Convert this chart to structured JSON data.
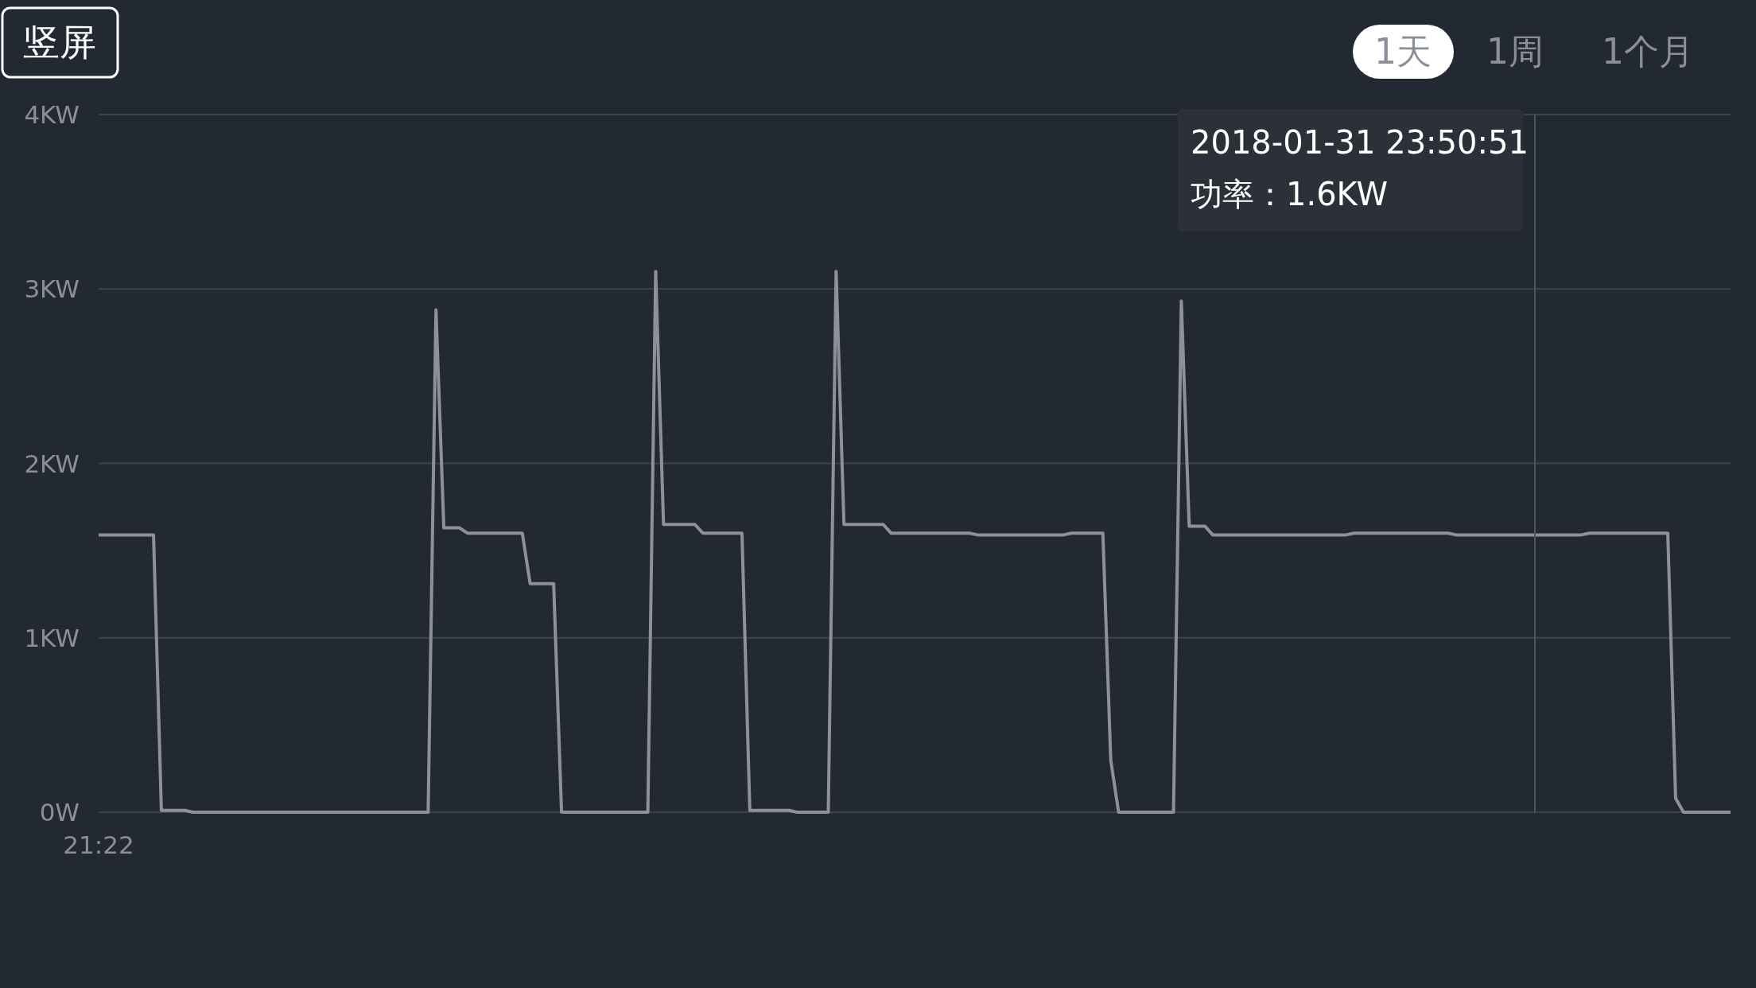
{
  "chart_data": {
    "type": "line",
    "ylim": [
      0,
      4
    ],
    "yticks": [
      {
        "value": 0,
        "label": "0W"
      },
      {
        "value": 1,
        "label": "1KW"
      },
      {
        "value": 2,
        "label": "2KW"
      },
      {
        "value": 3,
        "label": "3KW"
      },
      {
        "value": 4,
        "label": "4KW"
      }
    ],
    "grid": "y",
    "marker": "none",
    "line_style": "solid",
    "annotations": [
      "竖屏",
      "1天",
      "1周",
      "1个月",
      "2018-01-31 23:50:51",
      "功率：1.6KW"
    ],
    "categories": [
      "21:22",
      null,
      null,
      null,
      null,
      null,
      null,
      null,
      null,
      null,
      null,
      null,
      null,
      null,
      null,
      null,
      null,
      null,
      null,
      null,
      null,
      null,
      null,
      null,
      null,
      null,
      null,
      null,
      null,
      null,
      null,
      null,
      null,
      null,
      null,
      null,
      null,
      null,
      null,
      null,
      null,
      null,
      null,
      null,
      null,
      null,
      null,
      null,
      null,
      null,
      null,
      null,
      null,
      null,
      null,
      null,
      null,
      null,
      null,
      null,
      null,
      null,
      null,
      null,
      null,
      null,
      null,
      null,
      null,
      null,
      null,
      null,
      null,
      null,
      null,
      null,
      null,
      null,
      null,
      null,
      null,
      null,
      null,
      null,
      null,
      null,
      null,
      null,
      null,
      null,
      null,
      null,
      null,
      null,
      null,
      null,
      null,
      null,
      null,
      null,
      null,
      null,
      null,
      null,
      null,
      null,
      null,
      null,
      null,
      null,
      null,
      null,
      null,
      null,
      null,
      null,
      null,
      null,
      null,
      null,
      null,
      null,
      null,
      null,
      null,
      null,
      null,
      null,
      null,
      null,
      null,
      null,
      null,
      null,
      null,
      null,
      null,
      null,
      null,
      null,
      null,
      null,
      null,
      null,
      null,
      null,
      null,
      null,
      null,
      null,
      null,
      null,
      null,
      null,
      null,
      null,
      null,
      null,
      null,
      null,
      null,
      null,
      null,
      null,
      null,
      null,
      null,
      null,
      null,
      null,
      null,
      null,
      null,
      null,
      null,
      null,
      null,
      null,
      null,
      null,
      null,
      null,
      null,
      null,
      null,
      null,
      null,
      null,
      null,
      null,
      null,
      null,
      null,
      null,
      null,
      null,
      null,
      null,
      null,
      null,
      null,
      null,
      null,
      null,
      null,
      null,
      null,
      null,
      null
    ],
    "series": [
      {
        "color": "#8e9196",
        "values": [
          1.59,
          1.59,
          1.59,
          1.59,
          1.59,
          1.59,
          1.59,
          1.59,
          0.01,
          0.01,
          0.01,
          0.01,
          0,
          0,
          0,
          0,
          0,
          0,
          0,
          0,
          0,
          0,
          0,
          0,
          0,
          0,
          0,
          0,
          0,
          0,
          0,
          0,
          0,
          0,
          0,
          0,
          0,
          0,
          0,
          0,
          0,
          0,
          0,
          2.88,
          1.63,
          1.63,
          1.63,
          1.6,
          1.6,
          1.6,
          1.6,
          1.6,
          1.6,
          1.6,
          1.6,
          1.31,
          1.31,
          1.31,
          1.31,
          0,
          0,
          0,
          0,
          0,
          0,
          0,
          0,
          0,
          0,
          0,
          0,
          3.1,
          1.65,
          1.65,
          1.65,
          1.65,
          1.65,
          1.6,
          1.6,
          1.6,
          1.6,
          1.6,
          1.6,
          0.01,
          0.01,
          0.01,
          0.01,
          0.01,
          0.01,
          0,
          0,
          0,
          0,
          0,
          3.1,
          1.65,
          1.65,
          1.65,
          1.65,
          1.65,
          1.65,
          1.6,
          1.6,
          1.6,
          1.6,
          1.6,
          1.6,
          1.6,
          1.6,
          1.6,
          1.6,
          1.6,
          1.59,
          1.59,
          1.59,
          1.59,
          1.59,
          1.59,
          1.59,
          1.59,
          1.59,
          1.59,
          1.59,
          1.59,
          1.6,
          1.6,
          1.6,
          1.6,
          1.6,
          0.3,
          0,
          0,
          0,
          0,
          0,
          0,
          0,
          0,
          2.93,
          1.64,
          1.64,
          1.64,
          1.59,
          1.59,
          1.59,
          1.59,
          1.59,
          1.59,
          1.59,
          1.59,
          1.59,
          1.59,
          1.59,
          1.59,
          1.59,
          1.59,
          1.59,
          1.59,
          1.59,
          1.59,
          1.6,
          1.6,
          1.6,
          1.6,
          1.6,
          1.6,
          1.6,
          1.6,
          1.6,
          1.6,
          1.6,
          1.6,
          1.6,
          1.59,
          1.59,
          1.59,
          1.59,
          1.59,
          1.59,
          1.59,
          1.59,
          1.59,
          1.59,
          1.59,
          1.59,
          1.59,
          1.59,
          1.59,
          1.59,
          1.59,
          1.6,
          1.6,
          1.6,
          1.6,
          1.6,
          1.6,
          1.6,
          1.6,
          1.6,
          1.6,
          1.6,
          0.08,
          0,
          0,
          0,
          0,
          0,
          0,
          0
        ]
      }
    ]
  }
}
